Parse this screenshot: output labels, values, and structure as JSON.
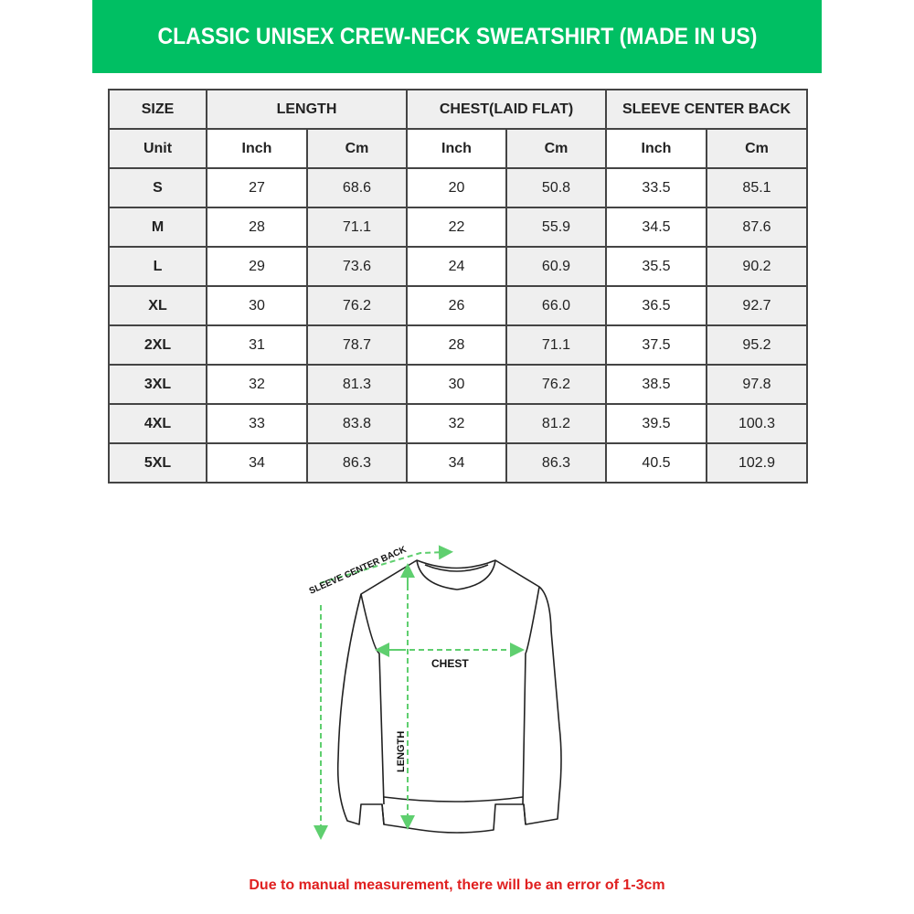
{
  "title": "CLASSIC UNISEX CREW-NECK SWEATSHIRT (MADE IN US)",
  "table": {
    "group_headers": [
      "SIZE",
      "LENGTH",
      "CHEST(LAID FLAT)",
      "SLEEVE CENTER BACK"
    ],
    "unit_row": [
      "Unit",
      "Inch",
      "Cm",
      "Inch",
      "Cm",
      "Inch",
      "Cm"
    ],
    "rows": [
      [
        "S",
        "27",
        "68.6",
        "20",
        "50.8",
        "33.5",
        "85.1"
      ],
      [
        "M",
        "28",
        "71.1",
        "22",
        "55.9",
        "34.5",
        "87.6"
      ],
      [
        "L",
        "29",
        "73.6",
        "24",
        "60.9",
        "35.5",
        "90.2"
      ],
      [
        "XL",
        "30",
        "76.2",
        "26",
        "66.0",
        "36.5",
        "92.7"
      ],
      [
        "2XL",
        "31",
        "78.7",
        "28",
        "71.1",
        "37.5",
        "95.2"
      ],
      [
        "3XL",
        "32",
        "81.3",
        "30",
        "76.2",
        "38.5",
        "97.8"
      ],
      [
        "4XL",
        "33",
        "83.8",
        "32",
        "81.2",
        "39.5",
        "100.3"
      ],
      [
        "5XL",
        "34",
        "86.3",
        "34",
        "86.3",
        "40.5",
        "102.9"
      ]
    ]
  },
  "diagram": {
    "sleeve_label": "SLEEVE CENTER BACK",
    "chest_label": "CHEST",
    "length_label": "LENGTH",
    "arrow_color": "#5fcf6f"
  },
  "note": "Due to manual measurement, there will be an error of 1-3cm",
  "colors": {
    "banner": "#00bf63",
    "note": "#e02020",
    "header_cell": "#efefef"
  }
}
